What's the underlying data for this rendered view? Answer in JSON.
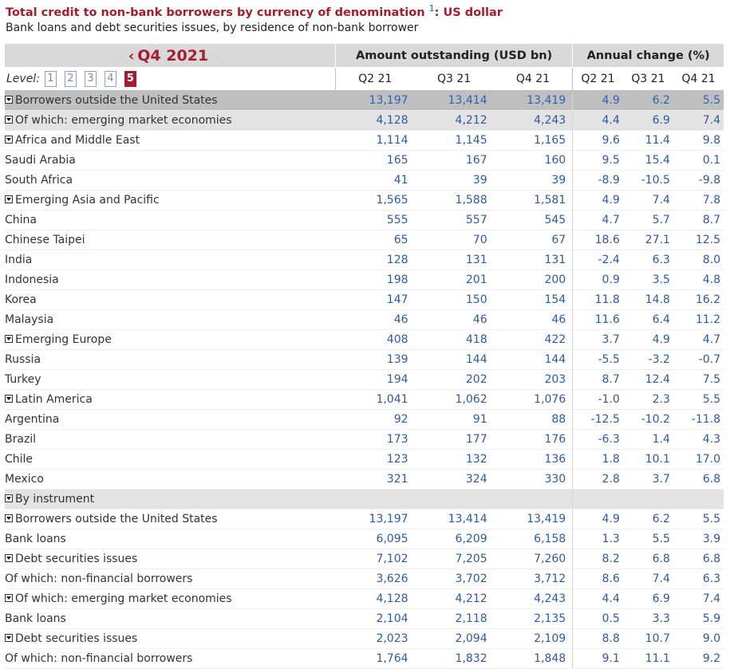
{
  "header": {
    "title": "Total credit to non-bank borrowers by currency of denomination",
    "footnote": "1",
    "title_suffix": ": US dollar",
    "subtitle": "Bank loans and debt securities issues, by residence of non-bank borrower"
  },
  "period": {
    "prev_glyph": "‹",
    "label": "Q4 2021",
    "next_glyph": "»"
  },
  "levels": {
    "label": "Level:",
    "options": [
      "1",
      "2",
      "3",
      "4",
      "5"
    ],
    "active": "5"
  },
  "groups": {
    "amount": "Amount outstanding (USD bn)",
    "change": "Annual change (%)"
  },
  "columns": [
    "Q2 21",
    "Q3 21",
    "Q4 21",
    "Q2 21",
    "Q3 21",
    "Q4 21"
  ],
  "rows": [
    {
      "label": "Borrowers outside the United States",
      "values": [
        "13,197",
        "13,414",
        "13,419",
        "4.9",
        "6.2",
        "5.5"
      ]
    },
    {
      "label": "Of which: emerging market economies",
      "values": [
        "4,128",
        "4,212",
        "4,243",
        "4.4",
        "6.9",
        "7.4"
      ]
    },
    {
      "label": "Africa and Middle East",
      "values": [
        "1,114",
        "1,145",
        "1,165",
        "9.6",
        "11.4",
        "9.8"
      ]
    },
    {
      "label": "Saudi Arabia",
      "values": [
        "165",
        "167",
        "160",
        "9.5",
        "15.4",
        "0.1"
      ]
    },
    {
      "label": "South Africa",
      "values": [
        "41",
        "39",
        "39",
        "-8.9",
        "-10.5",
        "-9.8"
      ]
    },
    {
      "label": "Emerging Asia and Pacific",
      "values": [
        "1,565",
        "1,588",
        "1,581",
        "4.9",
        "7.4",
        "7.8"
      ]
    },
    {
      "label": "China",
      "values": [
        "555",
        "557",
        "545",
        "4.7",
        "5.7",
        "8.7"
      ]
    },
    {
      "label": "Chinese Taipei",
      "values": [
        "65",
        "70",
        "67",
        "18.6",
        "27.1",
        "12.5"
      ]
    },
    {
      "label": "India",
      "values": [
        "128",
        "131",
        "131",
        "-2.4",
        "6.3",
        "8.0"
      ]
    },
    {
      "label": "Indonesia",
      "values": [
        "198",
        "201",
        "200",
        "0.9",
        "3.5",
        "4.8"
      ]
    },
    {
      "label": "Korea",
      "values": [
        "147",
        "150",
        "154",
        "11.8",
        "14.8",
        "16.2"
      ]
    },
    {
      "label": "Malaysia",
      "values": [
        "46",
        "46",
        "46",
        "11.6",
        "6.4",
        "11.2"
      ]
    },
    {
      "label": "Emerging Europe",
      "values": [
        "408",
        "418",
        "422",
        "3.7",
        "4.9",
        "4.7"
      ]
    },
    {
      "label": "Russia",
      "values": [
        "139",
        "144",
        "144",
        "-5.5",
        "-3.2",
        "-0.7"
      ]
    },
    {
      "label": "Turkey",
      "values": [
        "194",
        "202",
        "203",
        "8.7",
        "12.4",
        "7.5"
      ]
    },
    {
      "label": "Latin America",
      "values": [
        "1,041",
        "1,062",
        "1,076",
        "-1.0",
        "2.3",
        "5.5"
      ]
    },
    {
      "label": "Argentina",
      "values": [
        "92",
        "91",
        "88",
        "-12.5",
        "-10.2",
        "-11.8"
      ]
    },
    {
      "label": "Brazil",
      "values": [
        "173",
        "177",
        "176",
        "-6.3",
        "1.4",
        "4.3"
      ]
    },
    {
      "label": "Chile",
      "values": [
        "123",
        "132",
        "136",
        "1.8",
        "10.1",
        "17.0"
      ]
    },
    {
      "label": "Mexico",
      "values": [
        "321",
        "324",
        "330",
        "2.8",
        "3.7",
        "6.8"
      ]
    },
    {
      "label": "By instrument",
      "values": [
        "",
        "",
        "",
        "",
        "",
        ""
      ]
    },
    {
      "label": "Borrowers outside the United States",
      "values": [
        "13,197",
        "13,414",
        "13,419",
        "4.9",
        "6.2",
        "5.5"
      ]
    },
    {
      "label": "Bank loans",
      "values": [
        "6,095",
        "6,209",
        "6,158",
        "1.3",
        "5.5",
        "3.9"
      ]
    },
    {
      "label": "Debt securities issues",
      "values": [
        "7,102",
        "7,205",
        "7,260",
        "8.2",
        "6.8",
        "6.8"
      ]
    },
    {
      "label": "Of which: non-financial borrowers",
      "values": [
        "3,626",
        "3,702",
        "3,712",
        "8.6",
        "7.4",
        "6.3"
      ]
    },
    {
      "label": "Of which: emerging market economies",
      "values": [
        "4,128",
        "4,212",
        "4,243",
        "4.4",
        "6.9",
        "7.4"
      ]
    },
    {
      "label": "Bank loans",
      "values": [
        "2,104",
        "2,118",
        "2,135",
        "0.5",
        "3.3",
        "5.9"
      ]
    },
    {
      "label": "Debt securities issues",
      "values": [
        "2,023",
        "2,094",
        "2,109",
        "8.8",
        "10.7",
        "9.0"
      ]
    },
    {
      "label": "Of which: non-financial borrowers",
      "values": [
        "1,764",
        "1,832",
        "1,848",
        "9.1",
        "11.1",
        "9.2"
      ]
    }
  ]
}
